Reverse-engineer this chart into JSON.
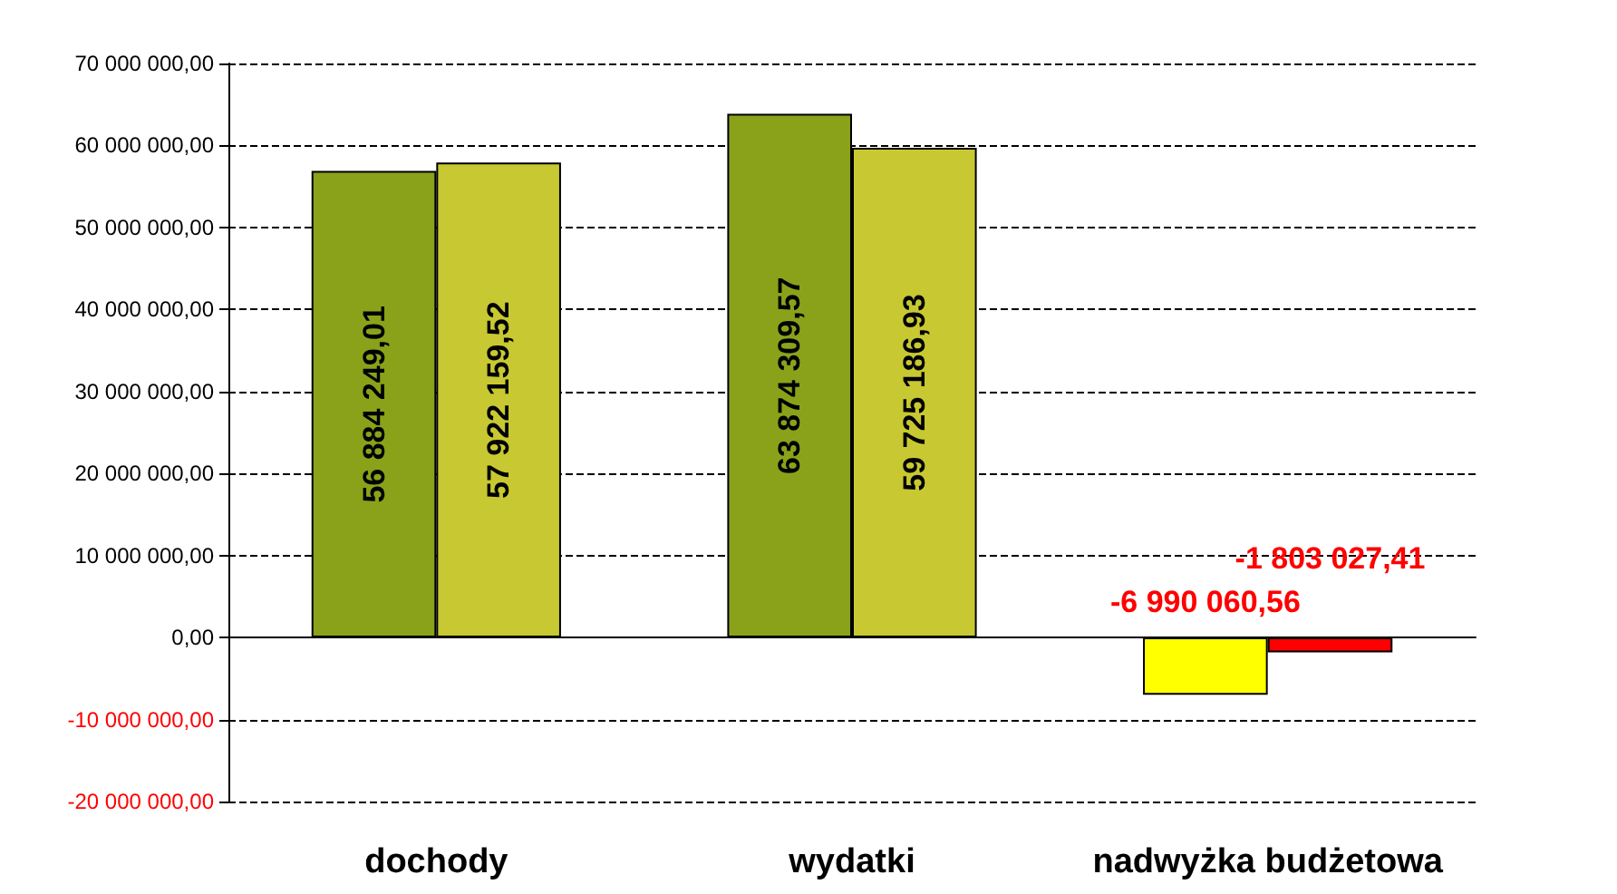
{
  "chart_data": {
    "type": "bar",
    "categories": [
      "dochody",
      "wydatki",
      "nadwyżka budżetowa"
    ],
    "series": [
      {
        "colors": [
          "#8aa21a",
          "#8aa21a",
          "#ffff00"
        ],
        "values": [
          56884249.01,
          63874309.57,
          -6990060.56
        ],
        "value_labels": [
          "56 884 249,01",
          "63 874 309,57",
          "-6 990 060,56"
        ]
      },
      {
        "colors": [
          "#c8c832",
          "#c8c832",
          "#ff0000"
        ],
        "values": [
          57922159.52,
          59725186.93,
          -1803027.41
        ],
        "value_labels": [
          "57 922 159,52",
          "59 725 186,93",
          "-1 803 027,41"
        ]
      }
    ],
    "ylim": [
      -20000000,
      70000000
    ],
    "yticks": [
      {
        "value": -20000000,
        "label": "-20 000 000,00"
      },
      {
        "value": -10000000,
        "label": "-10 000 000,00"
      },
      {
        "value": 0,
        "label": "0,00"
      },
      {
        "value": 10000000,
        "label": "10 000 000,00"
      },
      {
        "value": 20000000,
        "label": "20 000 000,00"
      },
      {
        "value": 30000000,
        "label": "30 000 000,00"
      },
      {
        "value": 40000000,
        "label": "40 000 000,00"
      },
      {
        "value": 50000000,
        "label": "50 000 000,00"
      },
      {
        "value": 60000000,
        "label": "60 000 000,00"
      },
      {
        "value": 70000000,
        "label": "70 000 000,00"
      }
    ],
    "grid": "y"
  }
}
